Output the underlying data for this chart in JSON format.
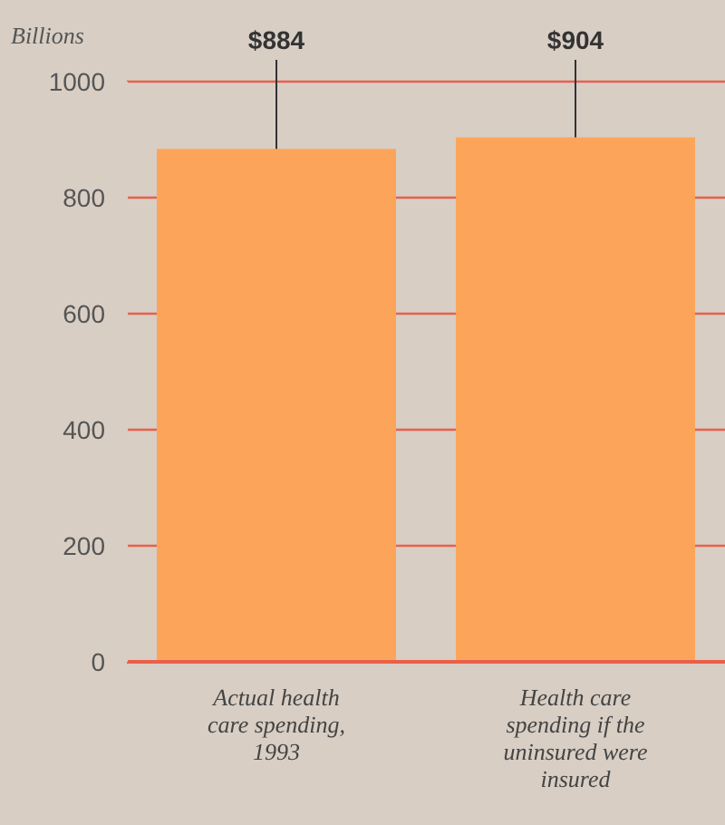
{
  "chart_data": {
    "type": "bar",
    "ylabel": "Billions",
    "categories": [
      "Actual health care spending, 1993",
      "Health care spending if the uninsured were insured"
    ],
    "values": [
      884,
      904
    ],
    "color": "#fca55a",
    "value_labels": [
      "$884",
      "$904"
    ],
    "ylim": [
      0,
      1000
    ],
    "yticks": [
      0,
      200,
      400,
      600,
      800,
      1000
    ],
    "grid": "y"
  }
}
